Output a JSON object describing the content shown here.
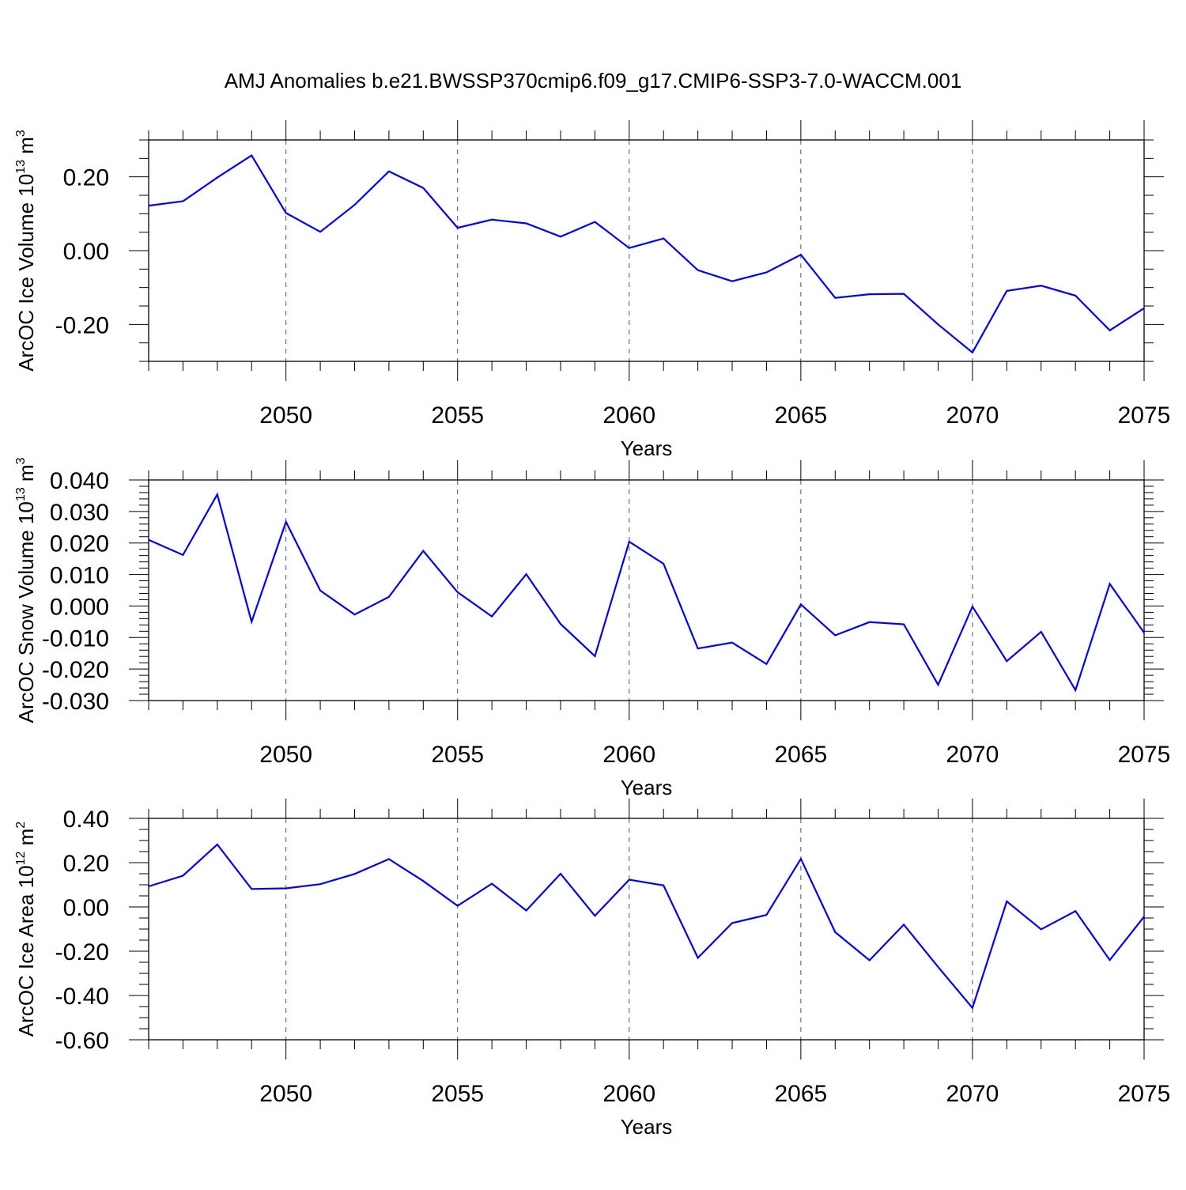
{
  "title": "AMJ Anomalies b.e21.BWSSP370cmip6.f09_g17.CMIP6-SSP3-7.0-WACCM.001",
  "colors": {
    "line": "#0000ff",
    "axis": "#000000",
    "grid": "#555555"
  },
  "chart_data": [
    {
      "type": "line",
      "ylabel": "ArcOC Ice Volume 10",
      "ylabel_exp": "13",
      "ylabel_unit": "m",
      "ylabel_unit_exp": "3",
      "xlabel": "Years",
      "xlim": [
        2046,
        2075
      ],
      "ylim": [
        -0.3,
        0.3
      ],
      "x_ticks": [
        2050,
        2055,
        2060,
        2065,
        2070,
        2075
      ],
      "x_tick_labels": [
        "2050",
        "2055",
        "2060",
        "2065",
        "2070",
        "2075"
      ],
      "y_ticks": [
        -0.2,
        0.0,
        0.2
      ],
      "y_tick_labels": [
        "-0.20",
        "0.00",
        "0.20"
      ],
      "y_minor_step": 0.05,
      "grid": "vertical dashed at major x ticks",
      "series": [
        {
          "x": [
            2046,
            2047,
            2048,
            2049,
            2050,
            2051,
            2052,
            2053,
            2054,
            2055,
            2056,
            2057,
            2058,
            2059,
            2060,
            2061,
            2062,
            2063,
            2064,
            2065,
            2066,
            2067,
            2068,
            2069,
            2070,
            2071,
            2072,
            2073,
            2074,
            2075
          ],
          "values": [
            0.122,
            0.134,
            0.198,
            0.258,
            0.102,
            0.051,
            0.124,
            0.215,
            0.17,
            0.062,
            0.084,
            0.074,
            0.038,
            0.078,
            0.007,
            0.033,
            -0.053,
            -0.083,
            -0.059,
            -0.011,
            -0.128,
            -0.118,
            -0.117,
            -0.2,
            -0.276,
            -0.109,
            -0.095,
            -0.122,
            -0.216,
            -0.156
          ]
        }
      ]
    },
    {
      "type": "line",
      "ylabel": "ArcOC Snow Volume 10",
      "ylabel_exp": "13",
      "ylabel_unit": "m",
      "ylabel_unit_exp": "3",
      "xlabel": "Years",
      "xlim": [
        2046,
        2075
      ],
      "ylim": [
        -0.03,
        0.04
      ],
      "x_ticks": [
        2050,
        2055,
        2060,
        2065,
        2070,
        2075
      ],
      "x_tick_labels": [
        "2050",
        "2055",
        "2060",
        "2065",
        "2070",
        "2075"
      ],
      "y_ticks": [
        -0.03,
        -0.02,
        -0.01,
        0.0,
        0.01,
        0.02,
        0.03,
        0.04
      ],
      "y_tick_labels": [
        "-0.030",
        "-0.020",
        "-0.010",
        "0.000",
        "0.010",
        "0.020",
        "0.030",
        "0.040"
      ],
      "y_minor_step": 0.002,
      "grid": "vertical dashed at major x ticks",
      "series": [
        {
          "x": [
            2046,
            2047,
            2048,
            2049,
            2050,
            2051,
            2052,
            2053,
            2054,
            2055,
            2056,
            2057,
            2058,
            2059,
            2060,
            2061,
            2062,
            2063,
            2064,
            2065,
            2066,
            2067,
            2068,
            2069,
            2070,
            2071,
            2072,
            2073,
            2074,
            2075
          ],
          "values": [
            0.021,
            0.0162,
            0.0354,
            -0.005,
            0.0267,
            0.0049,
            -0.0027,
            0.0029,
            0.0175,
            0.0044,
            -0.0033,
            0.0101,
            -0.0057,
            -0.0159,
            0.0204,
            0.0134,
            -0.0135,
            -0.0116,
            -0.0184,
            0.0005,
            -0.0093,
            -0.0051,
            -0.0058,
            -0.025,
            -0.0002,
            -0.0175,
            -0.0082,
            -0.0267,
            0.007,
            -0.0085
          ]
        }
      ]
    },
    {
      "type": "line",
      "ylabel": "ArcOC Ice Area 10",
      "ylabel_exp": "12",
      "ylabel_unit": "m",
      "ylabel_unit_exp": "2",
      "xlabel": "Years",
      "xlim": [
        2046,
        2075
      ],
      "ylim": [
        -0.6,
        0.4
      ],
      "x_ticks": [
        2050,
        2055,
        2060,
        2065,
        2070,
        2075
      ],
      "x_tick_labels": [
        "2050",
        "2055",
        "2060",
        "2065",
        "2070",
        "2075"
      ],
      "y_ticks": [
        -0.6,
        -0.4,
        -0.2,
        0.0,
        0.2,
        0.4
      ],
      "y_tick_labels": [
        "-0.60",
        "-0.40",
        "-0.20",
        "0.00",
        "0.20",
        "0.40"
      ],
      "y_minor_step": 0.05,
      "grid": "vertical dashed at major x ticks",
      "series": [
        {
          "x": [
            2046,
            2047,
            2048,
            2049,
            2050,
            2051,
            2052,
            2053,
            2054,
            2055,
            2056,
            2057,
            2058,
            2059,
            2060,
            2061,
            2062,
            2063,
            2064,
            2065,
            2066,
            2067,
            2068,
            2069,
            2070,
            2071,
            2072,
            2073,
            2074,
            2075
          ],
          "values": [
            0.093,
            0.141,
            0.282,
            0.081,
            0.084,
            0.103,
            0.149,
            0.216,
            0.117,
            0.005,
            0.105,
            -0.016,
            0.15,
            -0.04,
            0.123,
            0.097,
            -0.23,
            -0.073,
            -0.036,
            0.217,
            -0.114,
            -0.241,
            -0.08,
            -0.271,
            -0.456,
            0.025,
            -0.101,
            -0.019,
            -0.24,
            -0.044
          ]
        }
      ]
    }
  ]
}
